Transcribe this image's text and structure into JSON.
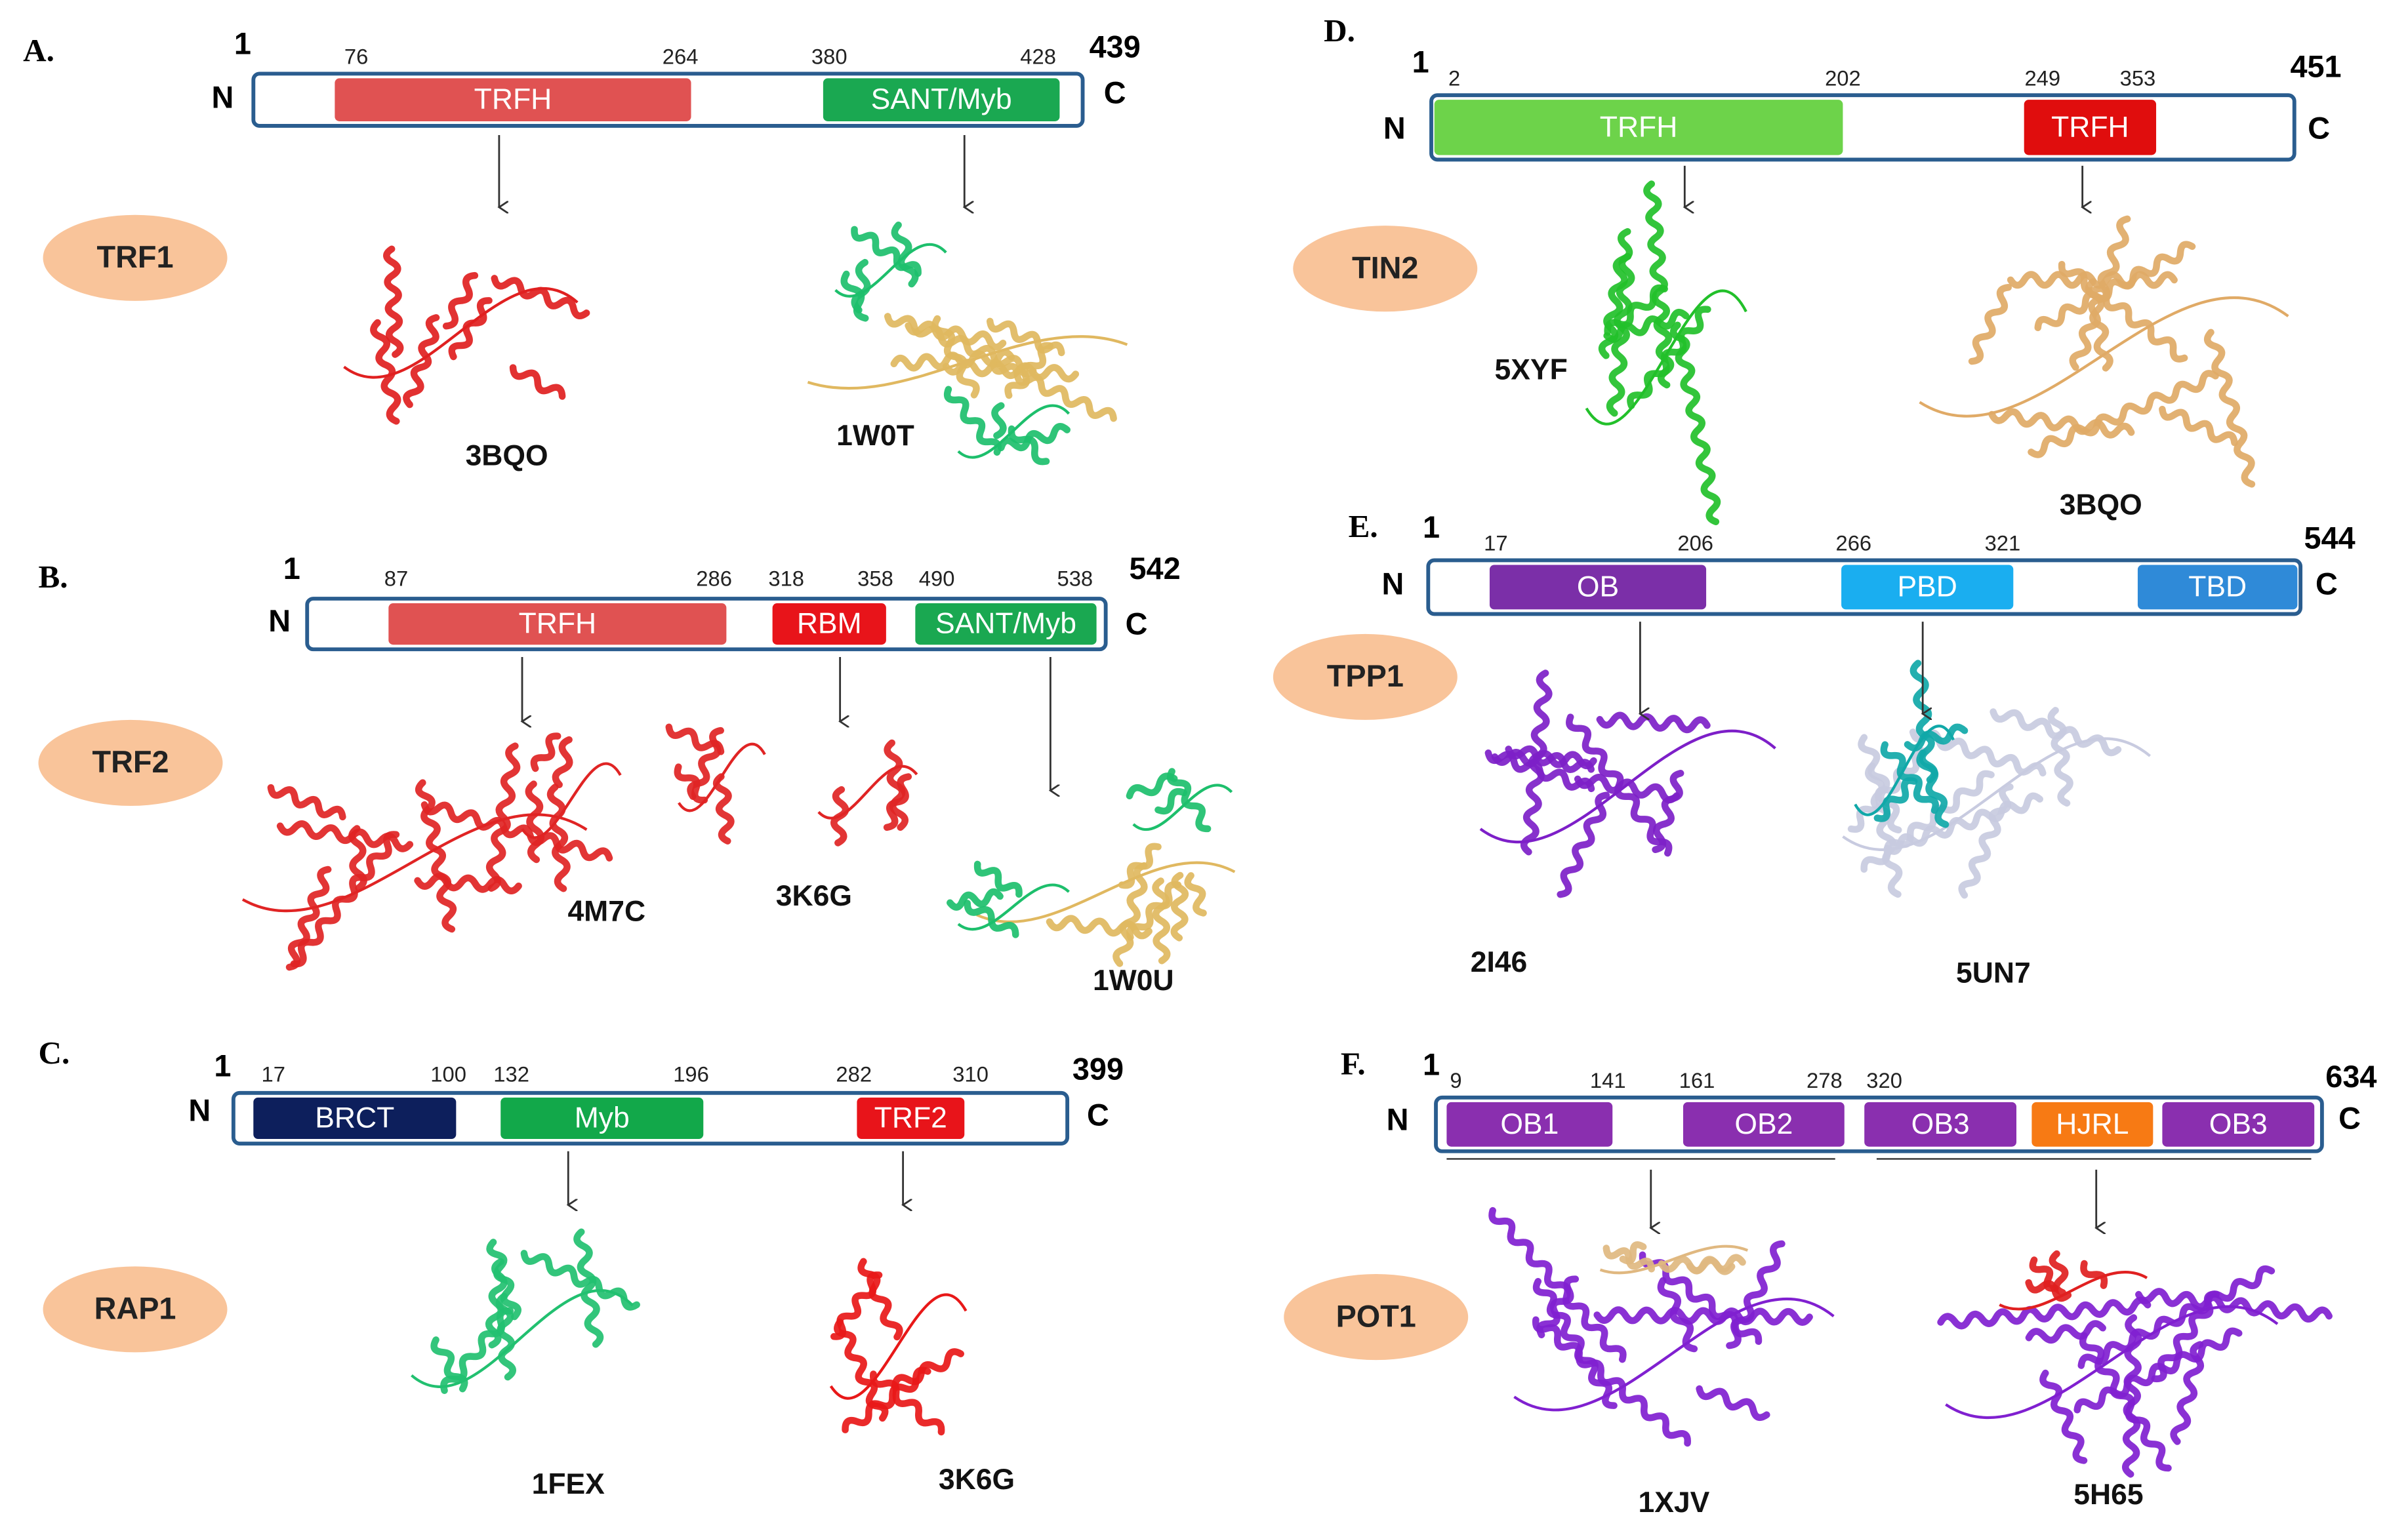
{
  "panels": [
    {
      "letter": "A.",
      "protein": "TRF1",
      "start": 1,
      "end": 439,
      "n": "N",
      "c": "C",
      "markers": [
        76,
        264,
        380,
        428
      ],
      "domains": [
        {
          "label": "TRFH",
          "color": "#e05252"
        },
        {
          "label": "SANT/Myb",
          "color": "#1aa851"
        }
      ],
      "structures": [
        "3BQO",
        "1W0T"
      ]
    },
    {
      "letter": "B.",
      "protein": "TRF2",
      "start": 1,
      "end": 542,
      "n": "N",
      "c": "C",
      "markers": [
        87,
        286,
        318,
        358,
        490,
        538
      ],
      "domains": [
        {
          "label": "TRFH",
          "color": "#e05252"
        },
        {
          "label": "RBM",
          "color": "#e8141a"
        },
        {
          "label": "SANT/Myb",
          "color": "#1aa851"
        }
      ],
      "structures": [
        "4M7C",
        "3K6G",
        "1W0U"
      ]
    },
    {
      "letter": "C.",
      "protein": "RAP1",
      "start": 1,
      "end": 399,
      "n": "N",
      "c": "C",
      "markers": [
        17,
        100,
        132,
        196,
        282,
        310
      ],
      "domains": [
        {
          "label": "BRCT",
          "color": "#0d1f5c"
        },
        {
          "label": "Myb",
          "color": "#12a84a"
        },
        {
          "label": "TRF2",
          "color": "#e8141a"
        }
      ],
      "structures": [
        "1FEX",
        "3K6G"
      ]
    },
    {
      "letter": "D.",
      "protein": "TIN2",
      "start": 1,
      "end": 451,
      "n": "N",
      "c": "C",
      "markers": [
        2,
        202,
        249,
        353
      ],
      "domains": [
        {
          "label": "TRFH",
          "color": "#6dd34a"
        },
        {
          "label": "TRFH",
          "color": "#e00d0d"
        }
      ],
      "structures": [
        "5XYF",
        "3BQO"
      ]
    },
    {
      "letter": "E.",
      "protein": "TPP1",
      "start": 1,
      "end": 544,
      "n": "N",
      "c": "C",
      "markers": [
        17,
        206,
        266,
        321
      ],
      "domains": [
        {
          "label": "OB",
          "color": "#7b2fa8"
        },
        {
          "label": "PBD",
          "color": "#1aaef0"
        },
        {
          "label": "TBD",
          "color": "#2f8ad8"
        }
      ],
      "structures": [
        "2I46",
        "5UN7"
      ]
    },
    {
      "letter": "F.",
      "protein": "POT1",
      "start": 1,
      "end": 634,
      "n": "N",
      "c": "C",
      "markers": [
        9,
        141,
        161,
        278,
        320
      ],
      "domains": [
        {
          "label": "OB1",
          "color": "#8a2faf"
        },
        {
          "label": "OB2",
          "color": "#8a2faf"
        },
        {
          "label": "OB3",
          "color": "#8a2faf"
        },
        {
          "label": "HJRL",
          "color": "#f77a14"
        },
        {
          "label": "OB3",
          "color": "#8a2faf"
        }
      ],
      "structures": [
        "1XJV",
        "5H65"
      ]
    }
  ]
}
